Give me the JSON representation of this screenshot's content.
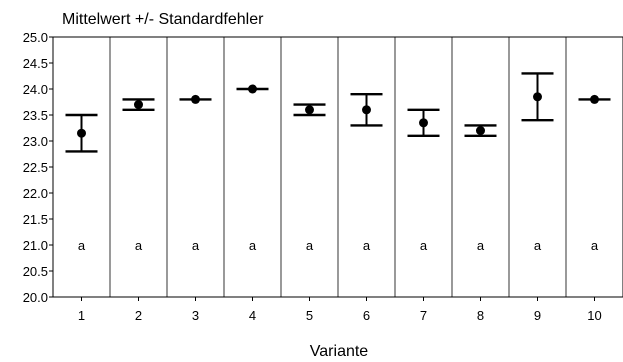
{
  "chart_data": {
    "type": "scatter",
    "title": "Mittelwert +/- Standardfehler",
    "xlabel": "Variante",
    "ylabel": "",
    "ylim": [
      20.0,
      25.0
    ],
    "y_ticks": [
      "20.0",
      "20.5",
      "21.0",
      "21.5",
      "22.0",
      "22.5",
      "23.0",
      "23.5",
      "24.0",
      "24.5",
      "25.0"
    ],
    "categories": [
      "1",
      "2",
      "3",
      "4",
      "5",
      "6",
      "7",
      "8",
      "9",
      "10"
    ],
    "series": [
      {
        "means": [
          23.15,
          23.7,
          23.8,
          24.0,
          23.6,
          23.6,
          23.35,
          23.2,
          23.85,
          23.8
        ],
        "error_low": [
          22.8,
          23.6,
          23.8,
          24.0,
          23.5,
          23.3,
          23.1,
          23.1,
          23.4,
          23.8
        ],
        "error_high": [
          23.5,
          23.8,
          23.8,
          24.0,
          23.7,
          23.9,
          23.6,
          23.3,
          24.3,
          23.8
        ]
      }
    ],
    "group_letters": [
      "a",
      "a",
      "a",
      "a",
      "a",
      "a",
      "a",
      "a",
      "a",
      "a"
    ],
    "group_letter_y": 21.0,
    "grid": false,
    "category_separators": true,
    "colors": {
      "marks": "#000000",
      "separators": "#000000"
    }
  }
}
